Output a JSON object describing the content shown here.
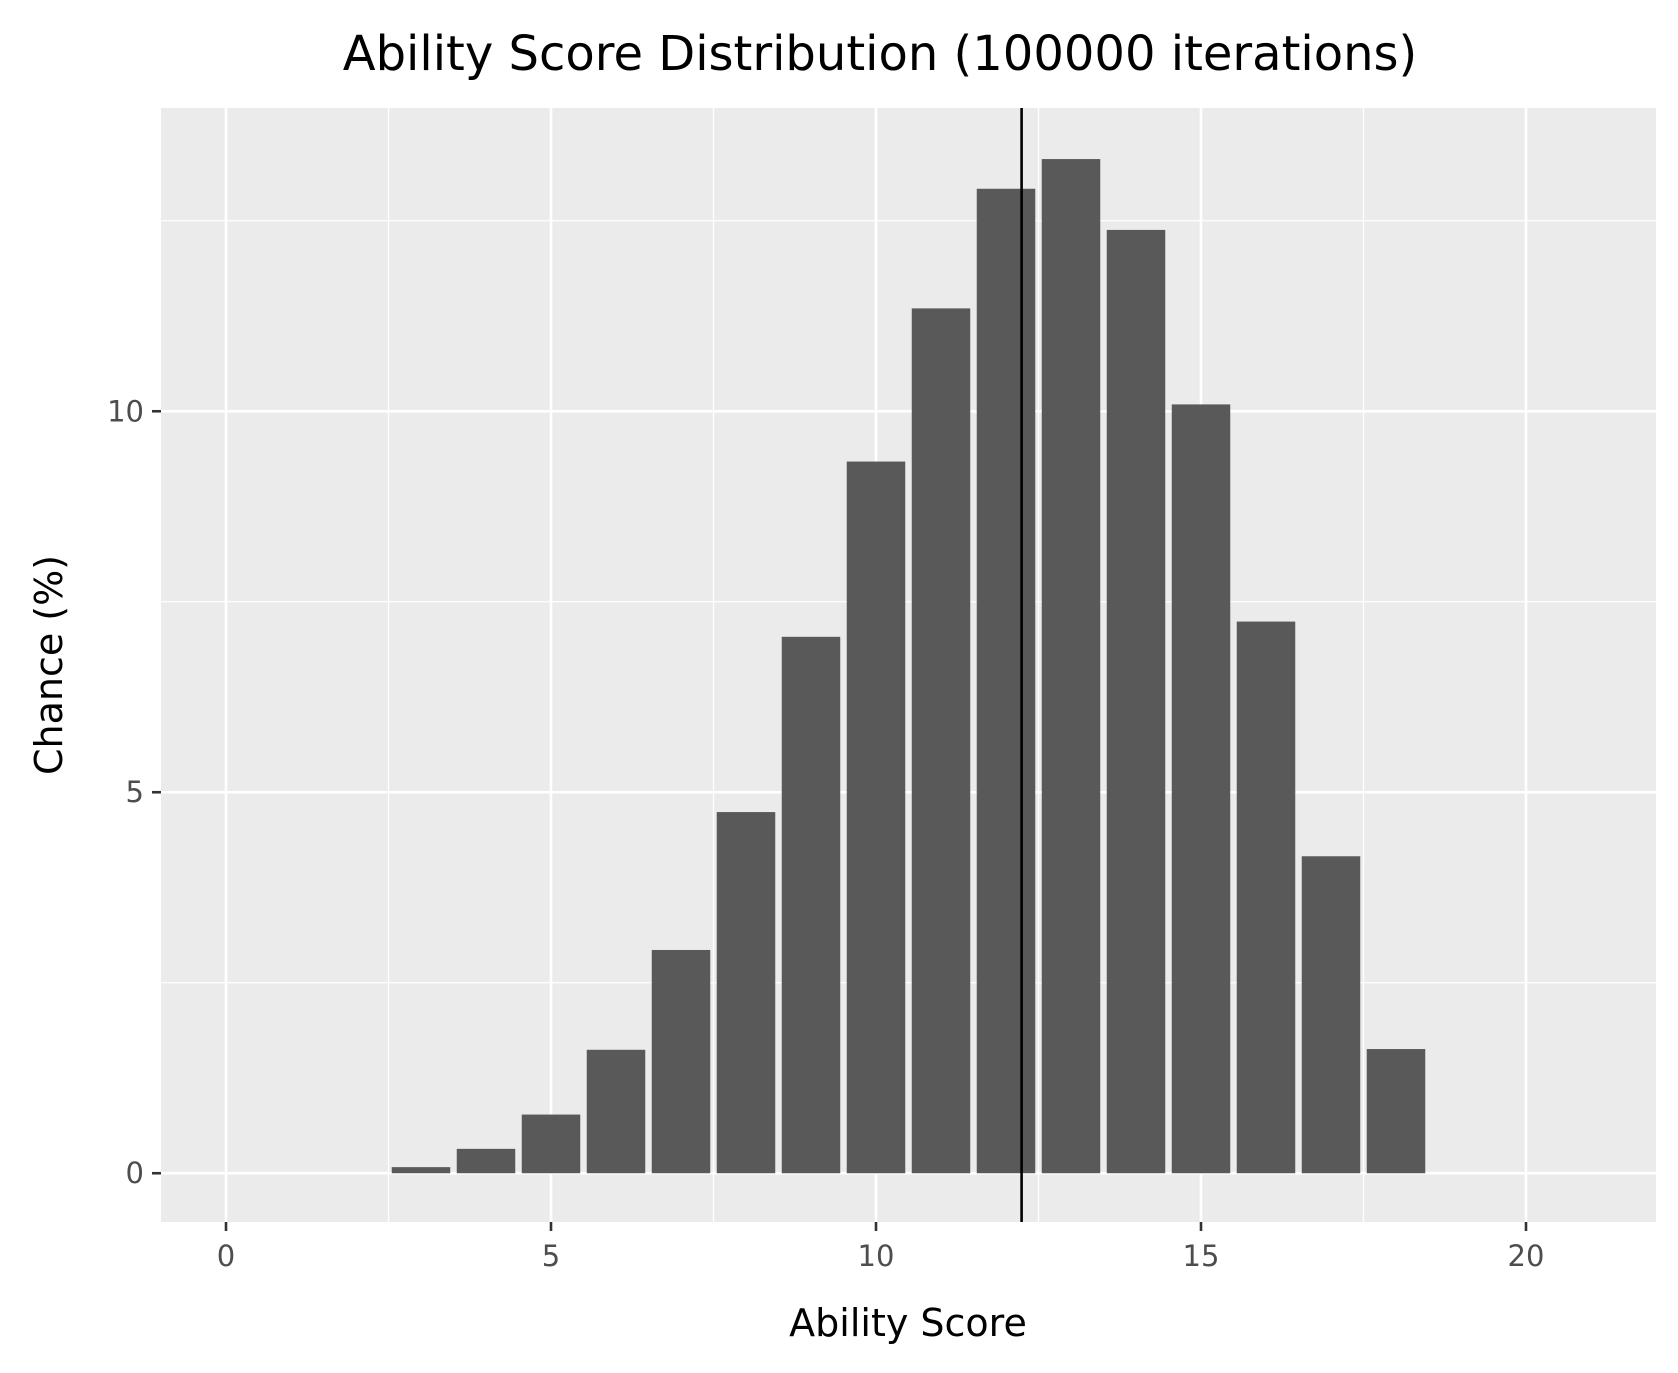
{
  "chart_data": {
    "type": "bar",
    "title": "Ability Score Distribution (100000 iterations)",
    "xlabel": "Ability Score",
    "ylabel": "Chance (%)",
    "x": [
      3,
      4,
      5,
      6,
      7,
      8,
      9,
      10,
      11,
      12,
      13,
      14,
      15,
      16,
      17,
      18
    ],
    "values": [
      0.08,
      0.32,
      0.77,
      1.62,
      2.93,
      4.74,
      7.04,
      9.34,
      11.35,
      12.92,
      13.31,
      12.38,
      10.09,
      7.24,
      4.16,
      1.63
    ],
    "xlim": [
      -1,
      22
    ],
    "ylim": [
      -0.64,
      13.98
    ],
    "x_ticks": [
      0,
      5,
      10,
      15,
      20
    ],
    "y_ticks": [
      0,
      5,
      10
    ],
    "mean_line_x": 12.24,
    "grid": true,
    "colors": {
      "bar": "#595959",
      "panel": "#ebebeb",
      "grid": "#ffffff",
      "mean_line": "#000000"
    }
  }
}
